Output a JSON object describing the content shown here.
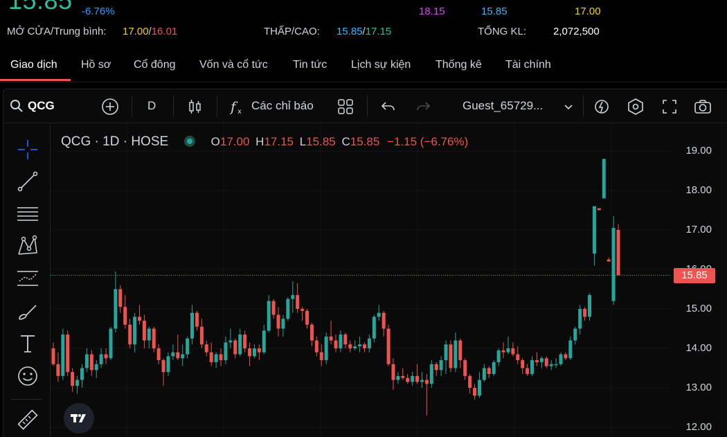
{
  "quote": {
    "last_price": "15.85",
    "change_pct": "-6.76%",
    "ceiling": "18.15",
    "floor": "15.85",
    "reference": "17.00",
    "open_avg_label": "MỞ CỬA/Trung bình:",
    "open": "17.00",
    "avg": "16.01",
    "lowhigh_label": "THẤP/CAO:",
    "low": "15.85",
    "high": "17.15",
    "volume_label": "TỔNG KL:",
    "volume": "2,072,500"
  },
  "tabs": [
    {
      "label": "Giao dịch",
      "active": true
    },
    {
      "label": "Hồ sơ"
    },
    {
      "label": "Cổ đông"
    },
    {
      "label": "Vốn và cổ tức"
    },
    {
      "label": "Tin tức"
    },
    {
      "label": "Lịch sự kiện"
    },
    {
      "label": "Thống kê"
    },
    {
      "label": "Tài chính"
    }
  ],
  "toolbar": {
    "symbol": "QCG",
    "interval": "D",
    "indicators_label": "Các chỉ báo",
    "user": "Guest_65729..."
  },
  "legend": {
    "title": "QCG · 1D · HOSE",
    "o_key": "O",
    "o_val": "17.00",
    "h_key": "H",
    "h_val": "17.15",
    "l_key": "L",
    "l_val": "15.85",
    "c_key": "C",
    "c_val": "15.85",
    "change": "−1.15 (−6.76%)"
  },
  "colors": {
    "up": "#26a69a",
    "down": "#ef5350",
    "accent": "#ef5350"
  },
  "chart_data": {
    "type": "candlestick",
    "y_ticks": [
      "19.00",
      "18.00",
      "17.00",
      "16.00",
      "15.00",
      "14.00",
      "13.00",
      "12.00"
    ],
    "ylim": [
      12.0,
      19.0
    ],
    "last_price_label": "15.85",
    "ohlc": [
      [
        14.0,
        14.15,
        13.55,
        13.6
      ],
      [
        13.6,
        13.9,
        13.15,
        13.3
      ],
      [
        13.3,
        14.5,
        13.2,
        14.35
      ],
      [
        14.35,
        14.45,
        13.3,
        13.4
      ],
      [
        13.4,
        13.5,
        12.9,
        13.05
      ],
      [
        13.05,
        13.3,
        12.85,
        13.2
      ],
      [
        13.2,
        13.6,
        13.0,
        13.5
      ],
      [
        13.5,
        14.0,
        13.4,
        13.85
      ],
      [
        13.85,
        13.95,
        13.3,
        13.45
      ],
      [
        13.45,
        13.7,
        13.25,
        13.6
      ],
      [
        13.6,
        14.0,
        13.5,
        13.85
      ],
      [
        13.85,
        14.0,
        13.6,
        13.75
      ],
      [
        13.75,
        14.55,
        13.7,
        14.5
      ],
      [
        14.5,
        15.95,
        14.4,
        15.5
      ],
      [
        15.5,
        15.6,
        14.9,
        15.05
      ],
      [
        15.05,
        15.35,
        14.5,
        14.6
      ],
      [
        14.6,
        14.75,
        14.0,
        14.1
      ],
      [
        14.1,
        14.9,
        13.9,
        14.8
      ],
      [
        14.8,
        15.1,
        14.6,
        14.7
      ],
      [
        14.7,
        14.85,
        14.0,
        14.2
      ],
      [
        14.2,
        14.55,
        14.0,
        14.5
      ],
      [
        14.5,
        14.55,
        13.9,
        14.0
      ],
      [
        14.0,
        14.1,
        13.6,
        13.7
      ],
      [
        13.7,
        13.75,
        13.05,
        13.4
      ],
      [
        13.4,
        13.9,
        13.3,
        13.8
      ],
      [
        13.8,
        14.1,
        13.7,
        13.9
      ],
      [
        13.9,
        14.35,
        13.7,
        13.75
      ],
      [
        13.75,
        14.1,
        13.55,
        13.85
      ],
      [
        13.85,
        14.3,
        13.75,
        14.25
      ],
      [
        14.25,
        15.1,
        14.1,
        14.9
      ],
      [
        14.9,
        14.95,
        14.45,
        14.55
      ],
      [
        14.55,
        14.75,
        14.0,
        14.1
      ],
      [
        14.1,
        14.2,
        13.8,
        13.9
      ],
      [
        13.9,
        14.15,
        13.55,
        13.65
      ],
      [
        13.65,
        13.9,
        13.5,
        13.85
      ],
      [
        13.85,
        14.0,
        13.55,
        13.7
      ],
      [
        13.7,
        14.3,
        13.6,
        14.15
      ],
      [
        14.15,
        14.5,
        14.0,
        14.2
      ],
      [
        14.2,
        14.25,
        13.75,
        13.85
      ],
      [
        13.85,
        14.5,
        13.8,
        14.35
      ],
      [
        14.35,
        14.45,
        13.9,
        14.0
      ],
      [
        14.0,
        14.15,
        13.55,
        13.8
      ],
      [
        13.8,
        14.1,
        13.75,
        14.0
      ],
      [
        14.0,
        14.1,
        13.7,
        13.9
      ],
      [
        13.9,
        14.6,
        13.85,
        14.45
      ],
      [
        14.45,
        15.35,
        14.4,
        15.2
      ],
      [
        15.2,
        15.25,
        14.75,
        14.85
      ],
      [
        14.85,
        15.05,
        14.3,
        14.5
      ],
      [
        14.5,
        14.85,
        14.3,
        14.75
      ],
      [
        14.75,
        15.3,
        14.7,
        15.25
      ],
      [
        15.25,
        15.7,
        14.9,
        15.35
      ],
      [
        15.35,
        15.65,
        14.9,
        15.0
      ],
      [
        15.0,
        15.05,
        14.7,
        14.95
      ],
      [
        14.95,
        15.0,
        14.5,
        14.6
      ],
      [
        14.6,
        14.65,
        14.05,
        14.2
      ],
      [
        14.2,
        14.3,
        13.8,
        13.9
      ],
      [
        13.9,
        14.1,
        13.55,
        13.7
      ],
      [
        13.7,
        14.4,
        13.6,
        14.3
      ],
      [
        14.3,
        14.7,
        14.1,
        14.2
      ],
      [
        14.2,
        14.35,
        13.9,
        14.0
      ],
      [
        14.0,
        14.45,
        13.9,
        14.35
      ],
      [
        14.35,
        14.4,
        14.0,
        14.1
      ],
      [
        14.1,
        14.2,
        13.9,
        14.0
      ],
      [
        14.0,
        14.2,
        13.95,
        14.05
      ],
      [
        14.05,
        14.3,
        13.9,
        14.1
      ],
      [
        14.1,
        14.15,
        13.9,
        14.0
      ],
      [
        14.0,
        14.35,
        13.9,
        14.25
      ],
      [
        14.25,
        14.85,
        14.15,
        14.8
      ],
      [
        14.8,
        15.1,
        14.7,
        14.9
      ],
      [
        14.9,
        14.95,
        14.3,
        14.5
      ],
      [
        14.5,
        14.6,
        13.55,
        13.6
      ],
      [
        13.6,
        13.75,
        12.95,
        13.2
      ],
      [
        13.2,
        13.4,
        13.1,
        13.3
      ],
      [
        13.3,
        13.5,
        13.2,
        13.25
      ],
      [
        13.25,
        13.35,
        13.1,
        13.15
      ],
      [
        13.15,
        13.4,
        13.05,
        13.3
      ],
      [
        13.3,
        13.6,
        13.1,
        13.15
      ],
      [
        13.15,
        13.4,
        13.0,
        13.2
      ],
      [
        13.2,
        13.35,
        12.3,
        13.1
      ],
      [
        13.1,
        13.7,
        13.0,
        13.6
      ],
      [
        13.6,
        13.65,
        13.3,
        13.45
      ],
      [
        13.45,
        13.8,
        13.3,
        13.7
      ],
      [
        13.7,
        14.2,
        13.35,
        14.1
      ],
      [
        14.1,
        14.2,
        13.4,
        13.5
      ],
      [
        13.5,
        14.4,
        13.4,
        14.2
      ],
      [
        14.2,
        14.25,
        13.5,
        13.7
      ],
      [
        13.7,
        13.75,
        13.2,
        13.3
      ],
      [
        13.3,
        13.35,
        12.85,
        13.0
      ],
      [
        13.0,
        13.1,
        12.7,
        12.8
      ],
      [
        12.8,
        13.4,
        12.75,
        13.2
      ],
      [
        13.2,
        13.6,
        13.15,
        13.5
      ],
      [
        13.5,
        13.55,
        13.25,
        13.35
      ],
      [
        13.35,
        13.7,
        13.3,
        13.65
      ],
      [
        13.65,
        14.0,
        13.55,
        13.95
      ],
      [
        13.95,
        14.15,
        13.75,
        13.9
      ],
      [
        13.9,
        14.3,
        13.85,
        14.0
      ],
      [
        14.0,
        14.15,
        13.8,
        13.85
      ],
      [
        13.85,
        14.05,
        13.6,
        13.7
      ],
      [
        13.7,
        13.75,
        13.35,
        13.5
      ],
      [
        13.5,
        13.6,
        13.3,
        13.35
      ],
      [
        13.35,
        13.8,
        13.3,
        13.7
      ],
      [
        13.7,
        13.9,
        13.55,
        13.65
      ],
      [
        13.65,
        13.8,
        13.5,
        13.75
      ],
      [
        13.75,
        13.8,
        13.5,
        13.55
      ],
      [
        13.55,
        13.7,
        13.45,
        13.6
      ],
      [
        13.6,
        13.75,
        13.5,
        13.6
      ],
      [
        13.6,
        13.9,
        13.55,
        13.85
      ],
      [
        13.85,
        13.9,
        13.7,
        13.75
      ],
      [
        13.75,
        14.3,
        13.7,
        14.2
      ],
      [
        14.2,
        14.55,
        14.1,
        14.5
      ],
      [
        14.5,
        15.1,
        14.35,
        15.0
      ],
      [
        15.0,
        15.05,
        14.7,
        14.8
      ],
      [
        14.8,
        15.4,
        14.7,
        15.35
      ],
      [
        16.4,
        17.6,
        16.1,
        17.6
      ],
      [
        17.55,
        17.55,
        17.5,
        17.5
      ],
      [
        17.8,
        18.8,
        17.8,
        18.8
      ],
      [
        16.25,
        16.3,
        16.2,
        16.2
      ],
      [
        15.2,
        17.35,
        15.1,
        17.05
      ],
      [
        17.0,
        17.15,
        15.85,
        15.85
      ]
    ]
  }
}
